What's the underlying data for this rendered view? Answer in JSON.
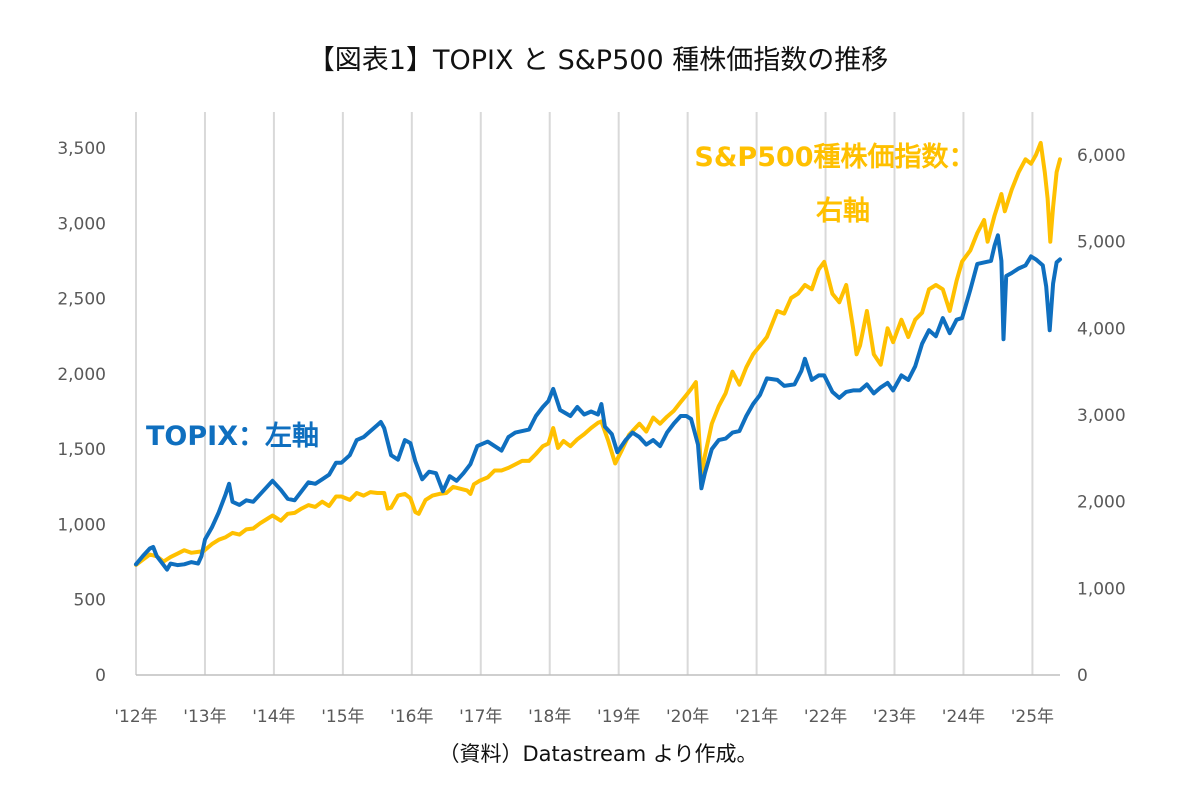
{
  "title": "【図表1】TOPIX と S&P500 種株価指数の推移",
  "source": "（資料）Datastream より作成。",
  "chart_data": {
    "type": "line",
    "title": "【図表1】TOPIX と S&P500 種株価指数の推移",
    "x_labels": [
      "'12年",
      "'13年",
      "'14年",
      "'15年",
      "'16年",
      "'17年",
      "'18年",
      "'19年",
      "'20年",
      "'21年",
      "'22年",
      "'23年",
      "'24年",
      "'25年"
    ],
    "xlim": [
      2012.0,
      2025.4
    ],
    "y_left": {
      "ylim": [
        0,
        3500
      ],
      "ticks": [
        "0",
        "500",
        "1,000",
        "1,500",
        "2,000",
        "2,500",
        "3,000",
        "3,500"
      ]
    },
    "y_right": {
      "ylim": [
        0,
        6000
      ],
      "ticks": [
        "0",
        "1,000",
        "2,000",
        "3,000",
        "4,000",
        "5,000",
        "6,000"
      ]
    },
    "grid": "vertical",
    "legend": "inline labels",
    "series": [
      {
        "name": "TOPIX：左軸",
        "axis": "left",
        "color": "#0F6FBF",
        "points": [
          [
            2012.0,
            735
          ],
          [
            2012.1,
            790
          ],
          [
            2012.2,
            840
          ],
          [
            2012.25,
            850
          ],
          [
            2012.3,
            790
          ],
          [
            2012.4,
            730
          ],
          [
            2012.45,
            700
          ],
          [
            2012.5,
            740
          ],
          [
            2012.6,
            730
          ],
          [
            2012.7,
            735
          ],
          [
            2012.8,
            750
          ],
          [
            2012.9,
            740
          ],
          [
            2012.95,
            790
          ],
          [
            2013.0,
            900
          ],
          [
            2013.1,
            980
          ],
          [
            2013.2,
            1080
          ],
          [
            2013.3,
            1200
          ],
          [
            2013.35,
            1270
          ],
          [
            2013.4,
            1150
          ],
          [
            2013.5,
            1130
          ],
          [
            2013.6,
            1160
          ],
          [
            2013.7,
            1150
          ],
          [
            2013.8,
            1200
          ],
          [
            2013.9,
            1250
          ],
          [
            2013.98,
            1290
          ],
          [
            2014.1,
            1230
          ],
          [
            2014.2,
            1170
          ],
          [
            2014.3,
            1160
          ],
          [
            2014.4,
            1220
          ],
          [
            2014.5,
            1280
          ],
          [
            2014.6,
            1270
          ],
          [
            2014.7,
            1300
          ],
          [
            2014.8,
            1330
          ],
          [
            2014.9,
            1410
          ],
          [
            2014.98,
            1410
          ],
          [
            2015.1,
            1460
          ],
          [
            2015.2,
            1560
          ],
          [
            2015.3,
            1580
          ],
          [
            2015.4,
            1620
          ],
          [
            2015.5,
            1660
          ],
          [
            2015.55,
            1680
          ],
          [
            2015.6,
            1640
          ],
          [
            2015.7,
            1460
          ],
          [
            2015.8,
            1430
          ],
          [
            2015.9,
            1560
          ],
          [
            2015.98,
            1540
          ],
          [
            2016.05,
            1420
          ],
          [
            2016.15,
            1300
          ],
          [
            2016.25,
            1350
          ],
          [
            2016.35,
            1340
          ],
          [
            2016.45,
            1220
          ],
          [
            2016.55,
            1320
          ],
          [
            2016.65,
            1290
          ],
          [
            2016.75,
            1340
          ],
          [
            2016.85,
            1400
          ],
          [
            2016.95,
            1520
          ],
          [
            2017.1,
            1550
          ],
          [
            2017.2,
            1520
          ],
          [
            2017.3,
            1490
          ],
          [
            2017.4,
            1580
          ],
          [
            2017.5,
            1610
          ],
          [
            2017.6,
            1620
          ],
          [
            2017.7,
            1630
          ],
          [
            2017.8,
            1720
          ],
          [
            2017.9,
            1780
          ],
          [
            2017.98,
            1820
          ],
          [
            2018.05,
            1900
          ],
          [
            2018.15,
            1760
          ],
          [
            2018.3,
            1720
          ],
          [
            2018.4,
            1780
          ],
          [
            2018.5,
            1730
          ],
          [
            2018.6,
            1750
          ],
          [
            2018.7,
            1730
          ],
          [
            2018.75,
            1800
          ],
          [
            2018.8,
            1650
          ],
          [
            2018.9,
            1600
          ],
          [
            2018.98,
            1480
          ],
          [
            2019.1,
            1560
          ],
          [
            2019.2,
            1610
          ],
          [
            2019.3,
            1580
          ],
          [
            2019.4,
            1530
          ],
          [
            2019.5,
            1560
          ],
          [
            2019.6,
            1520
          ],
          [
            2019.7,
            1610
          ],
          [
            2019.8,
            1670
          ],
          [
            2019.9,
            1720
          ],
          [
            2019.98,
            1720
          ],
          [
            2020.05,
            1700
          ],
          [
            2020.15,
            1530
          ],
          [
            2020.2,
            1240
          ],
          [
            2020.25,
            1340
          ],
          [
            2020.35,
            1500
          ],
          [
            2020.45,
            1560
          ],
          [
            2020.55,
            1570
          ],
          [
            2020.65,
            1610
          ],
          [
            2020.75,
            1620
          ],
          [
            2020.85,
            1720
          ],
          [
            2020.95,
            1800
          ],
          [
            2021.05,
            1860
          ],
          [
            2021.15,
            1970
          ],
          [
            2021.3,
            1960
          ],
          [
            2021.4,
            1920
          ],
          [
            2021.55,
            1930
          ],
          [
            2021.65,
            2020
          ],
          [
            2021.7,
            2100
          ],
          [
            2021.8,
            1960
          ],
          [
            2021.9,
            1990
          ],
          [
            2021.98,
            1990
          ],
          [
            2022.1,
            1880
          ],
          [
            2022.2,
            1840
          ],
          [
            2022.3,
            1880
          ],
          [
            2022.4,
            1890
          ],
          [
            2022.5,
            1890
          ],
          [
            2022.6,
            1930
          ],
          [
            2022.7,
            1870
          ],
          [
            2022.8,
            1910
          ],
          [
            2022.9,
            1940
          ],
          [
            2022.98,
            1890
          ],
          [
            2023.1,
            1990
          ],
          [
            2023.2,
            1960
          ],
          [
            2023.3,
            2050
          ],
          [
            2023.4,
            2200
          ],
          [
            2023.5,
            2290
          ],
          [
            2023.6,
            2250
          ],
          [
            2023.7,
            2370
          ],
          [
            2023.8,
            2270
          ],
          [
            2023.9,
            2360
          ],
          [
            2023.98,
            2370
          ],
          [
            2024.1,
            2560
          ],
          [
            2024.2,
            2730
          ],
          [
            2024.3,
            2740
          ],
          [
            2024.4,
            2750
          ],
          [
            2024.45,
            2850
          ],
          [
            2024.5,
            2920
          ],
          [
            2024.55,
            2750
          ],
          [
            2024.58,
            2230
          ],
          [
            2024.62,
            2650
          ],
          [
            2024.7,
            2670
          ],
          [
            2024.8,
            2700
          ],
          [
            2024.9,
            2720
          ],
          [
            2024.98,
            2780
          ],
          [
            2025.05,
            2760
          ],
          [
            2025.15,
            2720
          ],
          [
            2025.2,
            2580
          ],
          [
            2025.25,
            2290
          ],
          [
            2025.3,
            2600
          ],
          [
            2025.35,
            2740
          ],
          [
            2025.4,
            2760
          ]
        ]
      },
      {
        "name": "S&P500種株価指数：右軸",
        "axis": "right",
        "color": "#FFC000",
        "points": [
          [
            2012.0,
            1270
          ],
          [
            2012.1,
            1330
          ],
          [
            2012.2,
            1390
          ],
          [
            2012.3,
            1370
          ],
          [
            2012.4,
            1310
          ],
          [
            2012.5,
            1360
          ],
          [
            2012.6,
            1400
          ],
          [
            2012.7,
            1440
          ],
          [
            2012.8,
            1410
          ],
          [
            2012.9,
            1420
          ],
          [
            2012.98,
            1430
          ],
          [
            2013.1,
            1510
          ],
          [
            2013.2,
            1560
          ],
          [
            2013.3,
            1590
          ],
          [
            2013.4,
            1640
          ],
          [
            2013.5,
            1620
          ],
          [
            2013.6,
            1680
          ],
          [
            2013.7,
            1690
          ],
          [
            2013.8,
            1750
          ],
          [
            2013.9,
            1800
          ],
          [
            2013.98,
            1840
          ],
          [
            2014.1,
            1780
          ],
          [
            2014.2,
            1860
          ],
          [
            2014.3,
            1870
          ],
          [
            2014.4,
            1920
          ],
          [
            2014.5,
            1960
          ],
          [
            2014.6,
            1940
          ],
          [
            2014.7,
            2000
          ],
          [
            2014.8,
            1950
          ],
          [
            2014.9,
            2060
          ],
          [
            2014.98,
            2060
          ],
          [
            2015.1,
            2020
          ],
          [
            2015.2,
            2100
          ],
          [
            2015.3,
            2070
          ],
          [
            2015.4,
            2110
          ],
          [
            2015.5,
            2100
          ],
          [
            2015.6,
            2100
          ],
          [
            2015.65,
            1920
          ],
          [
            2015.7,
            1930
          ],
          [
            2015.8,
            2070
          ],
          [
            2015.9,
            2090
          ],
          [
            2015.98,
            2040
          ],
          [
            2016.05,
            1880
          ],
          [
            2016.1,
            1860
          ],
          [
            2016.2,
            2020
          ],
          [
            2016.3,
            2070
          ],
          [
            2016.4,
            2090
          ],
          [
            2016.5,
            2100
          ],
          [
            2016.6,
            2170
          ],
          [
            2016.7,
            2150
          ],
          [
            2016.8,
            2130
          ],
          [
            2016.85,
            2090
          ],
          [
            2016.9,
            2200
          ],
          [
            2016.98,
            2240
          ],
          [
            2017.1,
            2280
          ],
          [
            2017.2,
            2360
          ],
          [
            2017.3,
            2360
          ],
          [
            2017.4,
            2390
          ],
          [
            2017.5,
            2430
          ],
          [
            2017.6,
            2470
          ],
          [
            2017.7,
            2470
          ],
          [
            2017.8,
            2550
          ],
          [
            2017.9,
            2640
          ],
          [
            2017.98,
            2670
          ],
          [
            2018.05,
            2850
          ],
          [
            2018.12,
            2620
          ],
          [
            2018.2,
            2700
          ],
          [
            2018.3,
            2640
          ],
          [
            2018.4,
            2720
          ],
          [
            2018.5,
            2780
          ],
          [
            2018.6,
            2850
          ],
          [
            2018.7,
            2910
          ],
          [
            2018.75,
            2925
          ],
          [
            2018.85,
            2700
          ],
          [
            2018.95,
            2440
          ],
          [
            2019.05,
            2600
          ],
          [
            2019.15,
            2770
          ],
          [
            2019.3,
            2900
          ],
          [
            2019.4,
            2810
          ],
          [
            2019.5,
            2970
          ],
          [
            2019.6,
            2900
          ],
          [
            2019.7,
            2980
          ],
          [
            2019.8,
            3050
          ],
          [
            2019.9,
            3150
          ],
          [
            2019.98,
            3230
          ],
          [
            2020.05,
            3300
          ],
          [
            2020.12,
            3380
          ],
          [
            2020.2,
            2300
          ],
          [
            2020.25,
            2530
          ],
          [
            2020.35,
            2900
          ],
          [
            2020.45,
            3100
          ],
          [
            2020.55,
            3250
          ],
          [
            2020.65,
            3500
          ],
          [
            2020.75,
            3350
          ],
          [
            2020.85,
            3550
          ],
          [
            2020.95,
            3700
          ],
          [
            2021.05,
            3800
          ],
          [
            2021.15,
            3900
          ],
          [
            2021.3,
            4200
          ],
          [
            2021.4,
            4170
          ],
          [
            2021.5,
            4350
          ],
          [
            2021.6,
            4400
          ],
          [
            2021.7,
            4500
          ],
          [
            2021.8,
            4450
          ],
          [
            2021.9,
            4680
          ],
          [
            2021.98,
            4766
          ],
          [
            2022.1,
            4400
          ],
          [
            2022.2,
            4300
          ],
          [
            2022.3,
            4500
          ],
          [
            2022.4,
            4000
          ],
          [
            2022.45,
            3700
          ],
          [
            2022.5,
            3800
          ],
          [
            2022.6,
            4200
          ],
          [
            2022.7,
            3700
          ],
          [
            2022.8,
            3580
          ],
          [
            2022.9,
            4000
          ],
          [
            2022.98,
            3840
          ],
          [
            2023.1,
            4100
          ],
          [
            2023.2,
            3900
          ],
          [
            2023.3,
            4100
          ],
          [
            2023.4,
            4180
          ],
          [
            2023.5,
            4450
          ],
          [
            2023.6,
            4500
          ],
          [
            2023.7,
            4450
          ],
          [
            2023.8,
            4200
          ],
          [
            2023.9,
            4550
          ],
          [
            2023.98,
            4770
          ],
          [
            2024.1,
            4900
          ],
          [
            2024.2,
            5100
          ],
          [
            2024.3,
            5250
          ],
          [
            2024.35,
            5000
          ],
          [
            2024.45,
            5300
          ],
          [
            2024.55,
            5550
          ],
          [
            2024.6,
            5350
          ],
          [
            2024.7,
            5600
          ],
          [
            2024.8,
            5800
          ],
          [
            2024.9,
            5950
          ],
          [
            2024.98,
            5900
          ],
          [
            2025.05,
            6000
          ],
          [
            2025.12,
            6140
          ],
          [
            2025.18,
            5800
          ],
          [
            2025.22,
            5500
          ],
          [
            2025.26,
            5000
          ],
          [
            2025.3,
            5400
          ],
          [
            2025.35,
            5800
          ],
          [
            2025.4,
            5950
          ]
        ]
      }
    ]
  }
}
